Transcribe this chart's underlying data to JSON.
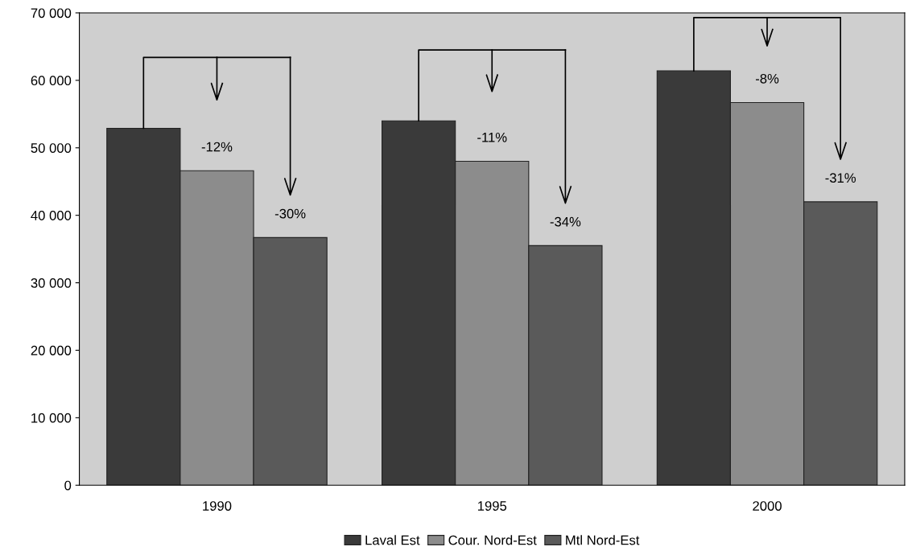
{
  "chart_data": {
    "type": "bar",
    "categories": [
      "1990",
      "1995",
      "2000"
    ],
    "series": [
      {
        "name": "Laval Est",
        "color": "#3a3a3a",
        "values": [
          52900,
          54000,
          61400
        ]
      },
      {
        "name": "Cour. Nord-Est",
        "color": "#8c8c8c",
        "values": [
          46600,
          48000,
          56700
        ]
      },
      {
        "name": "Mtl Nord-Est",
        "color": "#5a5a5a",
        "values": [
          36700,
          35500,
          42000
        ]
      }
    ],
    "ylim": [
      0,
      70000
    ],
    "yticks": [
      {
        "value": 0,
        "label": "0"
      },
      {
        "value": 10000,
        "label": "10 000"
      },
      {
        "value": 20000,
        "label": "20 000"
      },
      {
        "value": 30000,
        "label": "30 000"
      },
      {
        "value": 40000,
        "label": "40 000"
      },
      {
        "value": 50000,
        "label": "50 000"
      },
      {
        "value": 60000,
        "label": "60 000"
      },
      {
        "value": 70000,
        "label": "70 000"
      }
    ],
    "annotations": [
      "-12%",
      "-30%",
      "-11%",
      "-34%",
      "-8%",
      "-31%"
    ],
    "grid": false,
    "legend": "bottom"
  }
}
